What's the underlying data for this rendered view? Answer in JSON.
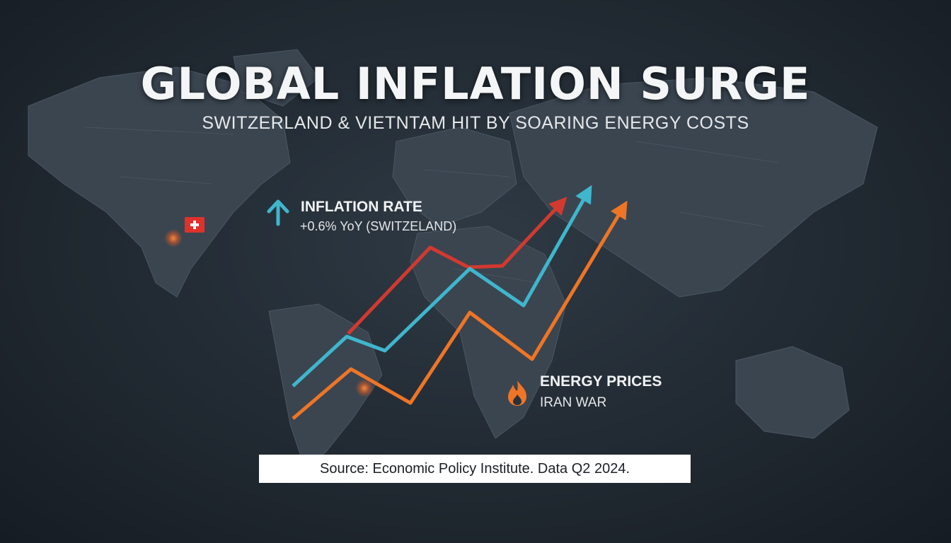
{
  "headline": "GLOBAL INFLATION SURGE",
  "subheadline": "SWITZERLAND & VIETNTAM HIT BY SOARING ENERGY COSTS",
  "inflation_callout": {
    "title": "INFLATION RATE",
    "value": "+0.6% YoY (SWITZELAND)",
    "icon": "arrow-up-icon"
  },
  "energy_callout": {
    "title": "ENERGY PRICES",
    "subtitle": "IRAN WAR",
    "icon": "flame-icon"
  },
  "flag_icon": "swiss-flag-icon",
  "source": "Source: Economic Policy Institute. Data Q2 2024.",
  "colors": {
    "background": "#1f2830",
    "land": "#3a4550",
    "red_line": "#d2392f",
    "blue_line": "#3fb6cc",
    "orange_line": "#ef7526",
    "text": "#f2f3f4"
  }
}
